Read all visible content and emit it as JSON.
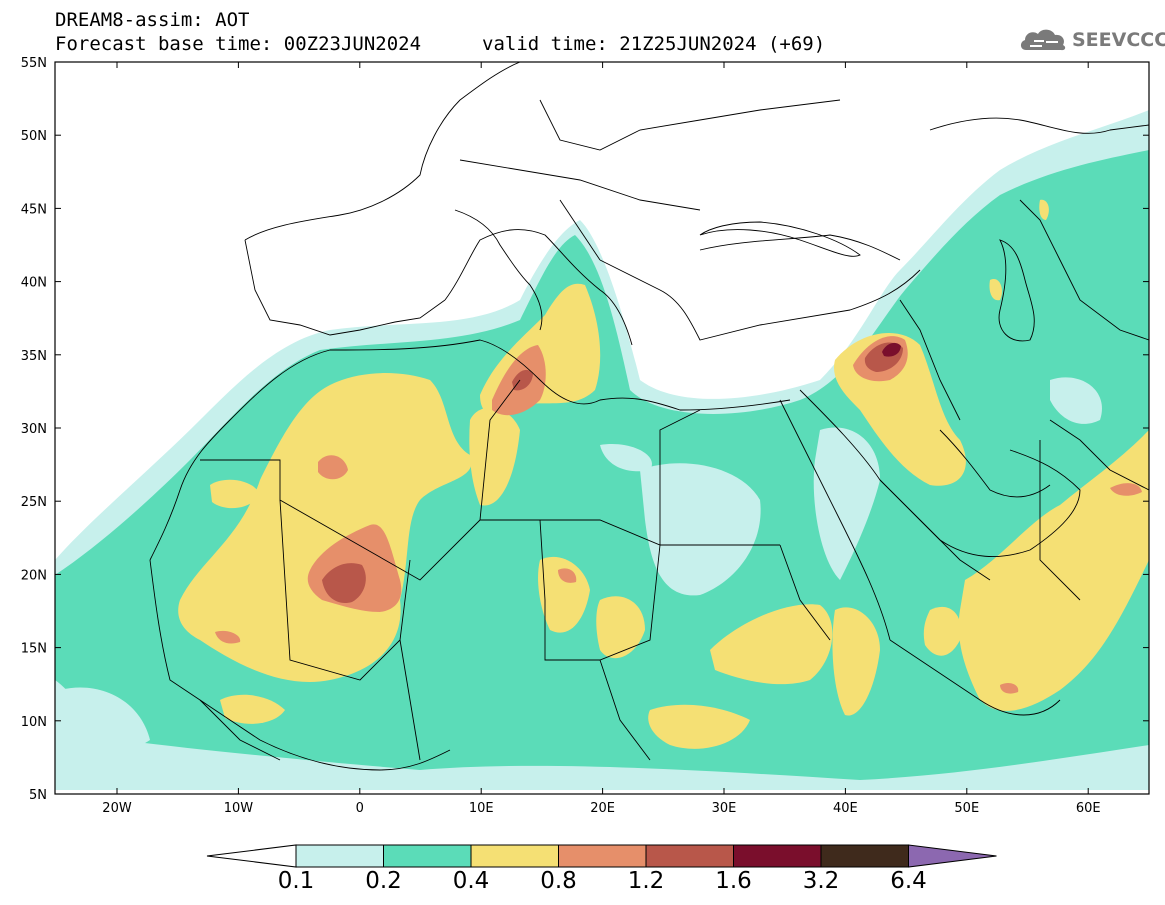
{
  "header": {
    "title": "DREAM8-assim: AOT",
    "base_time": "Forecast base time: 00Z23JUN2024",
    "valid_time": "valid time: 21Z25JUN2024 (+69)"
  },
  "logo": {
    "text": "SEEVCCC",
    "icon": "cloud-icon"
  },
  "axes": {
    "lat_labels": [
      "55N",
      "50N",
      "45N",
      "40N",
      "35N",
      "30N",
      "25N",
      "20N",
      "15N",
      "10N",
      "5N"
    ],
    "lon_labels": [
      "20W",
      "10W",
      "0",
      "10E",
      "20E",
      "30E",
      "40E",
      "50E",
      "60E"
    ]
  },
  "colorbar": {
    "labels": [
      "0.1",
      "0.2",
      "0.4",
      "0.8",
      "1.2",
      "1.6",
      "3.2",
      "6.4"
    ],
    "colors": [
      "#ffffff",
      "#c7f0ec",
      "#5bdcb8",
      "#f5e074",
      "#e68f6a",
      "#b8574a",
      "#7a0e2c",
      "#3f2a1c",
      "#8c68b0"
    ]
  },
  "colors": {
    "c1": "#c7f0ec",
    "c2": "#5bdcb8",
    "c3": "#f5e074",
    "c4": "#e68f6a",
    "c5": "#b8574a",
    "c6": "#7a0e2c",
    "border": "#000000"
  }
}
